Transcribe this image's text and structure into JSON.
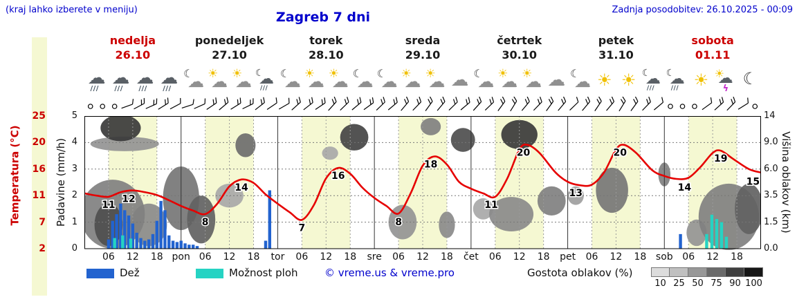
{
  "header": {
    "hint": "(kraj lahko izberete v meniju)",
    "title": "Zagreb 7 dni",
    "updated": "Zadnja posodobitev: 26.10.2025 - 00:09"
  },
  "colors": {
    "link_blue": "#0000cc",
    "accent_red": "#cc0000",
    "temp_line": "#e60000",
    "rain_blue": "#2263cf",
    "shower_cyan": "#26d3c3",
    "day_band": "#f5f8d2"
  },
  "legend": {
    "rain_label": "Dež",
    "shower_label": "Možnost ploh",
    "copyright": "© vreme.us & vreme.pro",
    "cloud_density_label": "Gostota oblakov (%)",
    "cloud_scale": [
      {
        "value": "10",
        "color": "#dcdcdc"
      },
      {
        "value": "25",
        "color": "#c0c0c0"
      },
      {
        "value": "50",
        "color": "#989898"
      },
      {
        "value": "75",
        "color": "#6a6a6a"
      },
      {
        "value": "90",
        "color": "#3f3f3f"
      },
      {
        "value": "100",
        "color": "#161616"
      }
    ]
  },
  "chart_data": {
    "type": "line",
    "title": "Zagreb 7 dni",
    "days": [
      {
        "name": "nedelja",
        "date": "26.10",
        "weekend": true,
        "icons": [
          "rain",
          "rain",
          "rain",
          "rain"
        ]
      },
      {
        "name": "ponedeljek",
        "date": "27.10",
        "weekend": false,
        "icons": [
          "moon-cloud",
          "partly-sunny",
          "partly-sunny",
          "moon-rain"
        ]
      },
      {
        "name": "torek",
        "date": "28.10",
        "weekend": false,
        "icons": [
          "moon-cloud",
          "partly-sunny",
          "partly-sunny",
          "moon-cloud"
        ]
      },
      {
        "name": "sreda",
        "date": "29.10",
        "weekend": false,
        "icons": [
          "moon-cloud",
          "partly-sunny",
          "partly-sunny",
          "cloudy"
        ]
      },
      {
        "name": "četrtek",
        "date": "30.10",
        "weekend": false,
        "icons": [
          "moon-cloud",
          "partly-sunny",
          "partly-sunny",
          "cloudy"
        ]
      },
      {
        "name": "petek",
        "date": "31.10",
        "weekend": false,
        "icons": [
          "moon-cloud",
          "sunny",
          "sunny",
          "moon-rain"
        ]
      },
      {
        "name": "sobota",
        "date": "01.11",
        "weekend": true,
        "icons": [
          "moon-rain",
          "sunny",
          "sun-thunder",
          "moon"
        ]
      }
    ],
    "x_axis": {
      "hour_ticks": [
        "06",
        "12",
        "18"
      ],
      "boundary_labels": [
        "pon",
        "tor",
        "sre",
        "čet",
        "pet",
        "sob"
      ]
    },
    "axis_left_temp": {
      "label": "Temperatura (°C)",
      "ticks": [
        "25",
        "20",
        "16",
        "11",
        "7",
        "2"
      ]
    },
    "axis_left_precip": {
      "label": "Padavine (mm/h)",
      "ticks": [
        "5",
        "4",
        "3",
        "2",
        "1",
        "0"
      ]
    },
    "axis_right_cloud": {
      "label": "Višina oblakov (km)",
      "ticks": [
        "14",
        "9.0",
        "6.0",
        "3.5",
        "1.5",
        "0.0"
      ]
    },
    "temperature": {
      "unit": "°C",
      "points": [
        [
          0,
          11.6
        ],
        [
          3,
          11.2
        ],
        [
          6,
          11.0
        ],
        [
          9,
          11.8
        ],
        [
          12,
          12.1
        ],
        [
          15,
          11.8
        ],
        [
          18,
          11.3
        ],
        [
          21,
          10.4
        ],
        [
          24,
          9.4
        ],
        [
          27,
          8.6
        ],
        [
          30,
          8.0
        ],
        [
          33,
          9.8
        ],
        [
          36,
          12.8
        ],
        [
          39,
          14.0
        ],
        [
          42,
          13.4
        ],
        [
          45,
          11.4
        ],
        [
          48,
          9.8
        ],
        [
          51,
          8.3
        ],
        [
          54,
          7.0
        ],
        [
          57,
          9.6
        ],
        [
          60,
          14.2
        ],
        [
          63,
          16.0
        ],
        [
          66,
          15.0
        ],
        [
          69,
          12.6
        ],
        [
          72,
          10.8
        ],
        [
          75,
          9.4
        ],
        [
          78,
          8.1
        ],
        [
          81,
          11.6
        ],
        [
          84,
          16.4
        ],
        [
          87,
          18.0
        ],
        [
          90,
          16.6
        ],
        [
          93,
          13.6
        ],
        [
          96,
          12.4
        ],
        [
          99,
          11.6
        ],
        [
          102,
          11.0
        ],
        [
          105,
          14.2
        ],
        [
          108,
          19.2
        ],
        [
          110,
          20.0
        ],
        [
          113,
          18.6
        ],
        [
          117,
          15.2
        ],
        [
          120,
          13.6
        ],
        [
          123,
          13.0
        ],
        [
          126,
          13.1
        ],
        [
          129,
          15.2
        ],
        [
          132,
          19.2
        ],
        [
          134,
          20.0
        ],
        [
          137,
          18.6
        ],
        [
          141,
          15.6
        ],
        [
          144,
          14.6
        ],
        [
          147,
          14.1
        ],
        [
          150,
          14.3
        ],
        [
          153,
          16.2
        ],
        [
          156,
          18.6
        ],
        [
          158,
          19.0
        ],
        [
          161,
          17.6
        ],
        [
          165,
          15.8
        ],
        [
          168,
          15.2
        ]
      ],
      "labels": [
        [
          6,
          11
        ],
        [
          11,
          12
        ],
        [
          30,
          8
        ],
        [
          39,
          14
        ],
        [
          54,
          7
        ],
        [
          63,
          16
        ],
        [
          78,
          8
        ],
        [
          86,
          18
        ],
        [
          101,
          11
        ],
        [
          109,
          20
        ],
        [
          122,
          13
        ],
        [
          133,
          20
        ],
        [
          149,
          14
        ],
        [
          158,
          19
        ],
        [
          166,
          15
        ]
      ]
    },
    "precipitation": {
      "unit": "mm/h",
      "rain": [
        [
          6,
          0.35
        ],
        [
          7,
          1.05
        ],
        [
          8,
          1.3
        ],
        [
          9,
          1.7
        ],
        [
          10,
          1.45
        ],
        [
          11,
          1.25
        ],
        [
          12,
          0.95
        ],
        [
          13,
          0.6
        ],
        [
          14,
          0.4
        ],
        [
          15,
          0.3
        ],
        [
          16,
          0.35
        ],
        [
          17,
          0.55
        ],
        [
          18,
          1.05
        ],
        [
          19,
          1.8
        ],
        [
          20,
          1.45
        ],
        [
          21,
          0.5
        ],
        [
          22,
          0.3
        ],
        [
          23,
          0.25
        ],
        [
          24,
          0.3
        ],
        [
          25,
          0.2
        ],
        [
          26,
          0.15
        ],
        [
          27,
          0.15
        ],
        [
          28,
          0.1
        ],
        [
          45,
          0.3
        ],
        [
          46,
          2.2
        ],
        [
          148,
          0.55
        ]
      ],
      "showers": [
        [
          7.5,
          0.4
        ],
        [
          9.5,
          0.5
        ],
        [
          11.5,
          0.38
        ],
        [
          154.5,
          0.55
        ],
        [
          155.8,
          1.28
        ],
        [
          157,
          1.12
        ],
        [
          158.2,
          1.0
        ],
        [
          159.4,
          0.45
        ]
      ]
    },
    "clouds": [
      [
        9,
        4.55,
        10,
        1.0,
        0.85
      ],
      [
        10,
        3.95,
        17,
        0.55,
        0.4
      ],
      [
        7,
        1.3,
        16,
        2.6,
        0.5
      ],
      [
        6,
        0.9,
        7,
        1.6,
        0.75
      ],
      [
        16,
        0.9,
        9,
        1.6,
        0.45
      ],
      [
        24,
        1.9,
        9,
        2.4,
        0.55
      ],
      [
        29,
        1.1,
        7,
        1.8,
        0.65
      ],
      [
        36,
        2.0,
        7,
        0.9,
        0.3
      ],
      [
        40,
        3.9,
        5,
        0.9,
        0.6
      ],
      [
        61,
        3.6,
        4,
        0.5,
        0.3
      ],
      [
        67,
        4.2,
        7,
        1.0,
        0.8
      ],
      [
        86,
        4.6,
        5,
        0.65,
        0.5
      ],
      [
        79,
        1.0,
        7,
        1.3,
        0.4
      ],
      [
        90,
        0.9,
        4,
        1.0,
        0.45
      ],
      [
        94,
        4.1,
        6,
        0.9,
        0.75
      ],
      [
        99,
        1.5,
        5,
        0.8,
        0.3
      ],
      [
        108,
        4.3,
        9,
        1.1,
        0.85
      ],
      [
        106,
        1.3,
        11,
        1.3,
        0.45
      ],
      [
        116,
        1.8,
        7,
        1.1,
        0.5
      ],
      [
        122,
        2.0,
        4,
        0.7,
        0.35
      ],
      [
        131,
        2.2,
        8,
        1.7,
        0.55
      ],
      [
        144,
        2.8,
        3,
        0.9,
        0.5
      ],
      [
        160,
        1.2,
        15,
        2.5,
        0.5
      ],
      [
        165,
        1.5,
        7,
        1.9,
        0.65
      ],
      [
        152,
        0.6,
        5,
        1.0,
        0.4
      ]
    ],
    "wind": [
      "c",
      "c",
      "c",
      [
        -20,
        1
      ],
      [
        -28,
        2
      ],
      [
        -24,
        2
      ],
      [
        -32,
        2
      ],
      [
        -28,
        1
      ],
      [
        -18,
        1
      ],
      [
        -24,
        1
      ],
      [
        -34,
        2
      ],
      [
        -40,
        2
      ],
      [
        -32,
        2
      ],
      [
        -26,
        2
      ],
      [
        -38,
        2
      ],
      [
        -34,
        1
      ],
      [
        -30,
        1
      ],
      [
        -42,
        2
      ],
      [
        -38,
        2
      ],
      [
        -34,
        2
      ],
      [
        -48,
        2
      ],
      [
        -44,
        2
      ],
      [
        -40,
        2
      ],
      [
        -36,
        2
      ],
      [
        -44,
        2
      ],
      [
        -40,
        2
      ],
      [
        -50,
        2
      ],
      [
        -46,
        2
      ],
      [
        -54,
        2
      ],
      [
        -50,
        2
      ],
      [
        -44,
        2
      ],
      [
        -40,
        2
      ],
      [
        -48,
        2
      ],
      [
        -44,
        2
      ],
      [
        -54,
        2
      ],
      [
        -58,
        2
      ],
      [
        -50,
        2
      ],
      [
        -46,
        2
      ],
      [
        -54,
        2
      ],
      [
        -50,
        2
      ],
      [
        -44,
        1
      ],
      [
        -50,
        2
      ],
      [
        -56,
        2
      ],
      [
        -50,
        2
      ],
      [
        -58,
        2
      ],
      [
        -54,
        2
      ],
      [
        -46,
        2
      ],
      [
        -40,
        1
      ],
      "c",
      "c",
      "c",
      [
        -36,
        1
      ],
      [
        -42,
        2
      ],
      [
        -46,
        2
      ],
      [
        -32,
        1
      ],
      "c"
    ]
  }
}
